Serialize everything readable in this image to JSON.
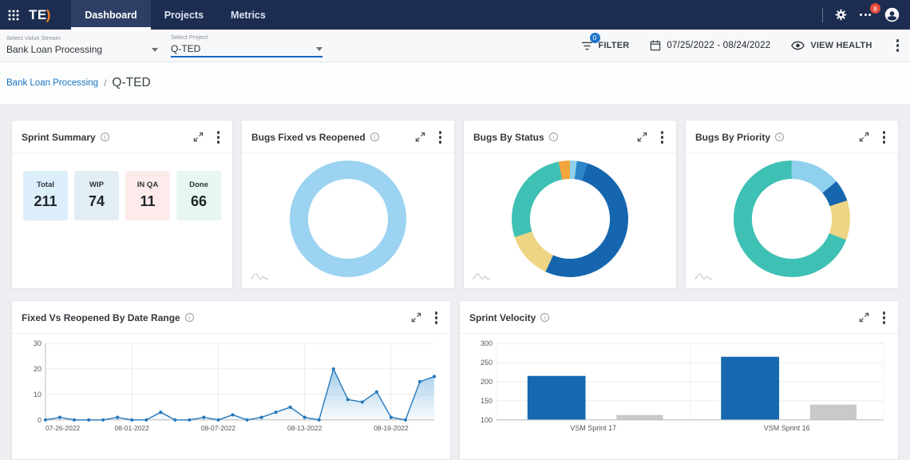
{
  "navbar": {
    "logo_text": "TE",
    "logo_accent": ")",
    "items": [
      {
        "label": "Dashboard"
      },
      {
        "label": "Projects"
      },
      {
        "label": "Metrics"
      }
    ],
    "notifications_badge": "8"
  },
  "filter_bar": {
    "value_stream": {
      "label": "Select Value Stream",
      "value": "Bank Loan Processing"
    },
    "project": {
      "label": "Select Project",
      "value": "Q-TED"
    },
    "filter_button": "FILTER",
    "filter_badge": "0",
    "date_range": "07/25/2022 - 08/24/2022",
    "view_health_button": "VIEW HEALTH"
  },
  "breadcrumb": {
    "parent": "Bank Loan Processing",
    "separator": "/",
    "current": "Q-TED"
  },
  "cards": {
    "sprint_summary": {
      "title": "Sprint Summary",
      "stats": [
        {
          "label": "Total",
          "value": "211",
          "bg": "#ddeefb"
        },
        {
          "label": "WIP",
          "value": "74",
          "bg": "#e3edf4"
        },
        {
          "label": "IN QA",
          "value": "11",
          "bg": "#fcebea"
        },
        {
          "label": "Done",
          "value": "66",
          "bg": "#e7f6ee"
        }
      ]
    },
    "bugs_fixed_vs_reopened": {
      "title": "Bugs Fixed vs Reopened"
    },
    "bugs_by_status": {
      "title": "Bugs By Status"
    },
    "bugs_by_priority": {
      "title": "Bugs By Priority"
    },
    "fixed_vs_reopened_by_date": {
      "title": "Fixed Vs Reopened By Date Range"
    },
    "sprint_velocity": {
      "title": "Sprint Velocity"
    }
  },
  "chart_data": [
    {
      "id": "bugs_fixed_vs_reopened",
      "type": "pie",
      "title": "Bugs Fixed vs Reopened",
      "donut": true,
      "segments": [
        {
          "label": "slice-1",
          "value": 100,
          "color": "#9bd3f1"
        }
      ]
    },
    {
      "id": "bugs_by_status",
      "type": "pie",
      "title": "Bugs By Status",
      "donut": true,
      "segments": [
        {
          "label": "slice-1",
          "value": 2,
          "color": "#8fd0ee"
        },
        {
          "label": "slice-2",
          "value": 3,
          "color": "#2e86c8"
        },
        {
          "label": "slice-3",
          "value": 52,
          "color": "#1566ae"
        },
        {
          "label": "slice-4",
          "value": 13,
          "color": "#eed584"
        },
        {
          "label": "slice-5",
          "value": 27,
          "color": "#3fc0b4"
        },
        {
          "label": "slice-6",
          "value": 3,
          "color": "#f2a53c"
        }
      ]
    },
    {
      "id": "bugs_by_priority",
      "type": "pie",
      "title": "Bugs By Priority",
      "donut": true,
      "segments": [
        {
          "label": "slice-1",
          "value": 14,
          "color": "#8fd0ee"
        },
        {
          "label": "slice-2",
          "value": 6,
          "color": "#1566ae"
        },
        {
          "label": "slice-3",
          "value": 11,
          "color": "#eed584"
        },
        {
          "label": "slice-4",
          "value": 69,
          "color": "#3fc0b4"
        }
      ]
    },
    {
      "id": "fixed_vs_reopened_by_date",
      "type": "area",
      "title": "Fixed Vs Reopened By Date Range",
      "values": [
        0,
        1,
        0,
        0,
        0,
        1,
        0,
        0,
        3,
        0,
        0,
        1,
        0,
        2,
        0,
        1,
        3,
        5,
        1,
        0,
        20,
        8,
        7,
        11,
        1,
        0,
        15,
        17
      ],
      "x_tick_labels": [
        {
          "index": 0,
          "label": "07-26-2022"
        },
        {
          "index": 6,
          "label": "08-01-2022"
        },
        {
          "index": 12,
          "label": "08-07-2022"
        },
        {
          "index": 18,
          "label": "08-13-2022"
        },
        {
          "index": 24,
          "label": "08-19-2022"
        }
      ],
      "ylim": [
        0,
        30
      ],
      "yticks": [
        0,
        10,
        20,
        30
      ],
      "line_color": "#2478bc",
      "fill_color": "#7db8e0",
      "grid": true,
      "legend": false
    },
    {
      "id": "sprint_velocity",
      "type": "bar",
      "title": "Sprint Velocity",
      "categories": [
        "VSM Sprint 17",
        "VSM Sprint 16"
      ],
      "series": [
        {
          "name": "series-blue",
          "color": "#1668b0",
          "values": [
            215,
            265
          ]
        },
        {
          "name": "series-gray",
          "color": "#c9c9c9",
          "values": [
            113,
            140
          ]
        }
      ],
      "ylim": [
        100,
        300
      ],
      "yticks": [
        100,
        150,
        200,
        250,
        300
      ],
      "grid": true,
      "legend": false
    }
  ]
}
